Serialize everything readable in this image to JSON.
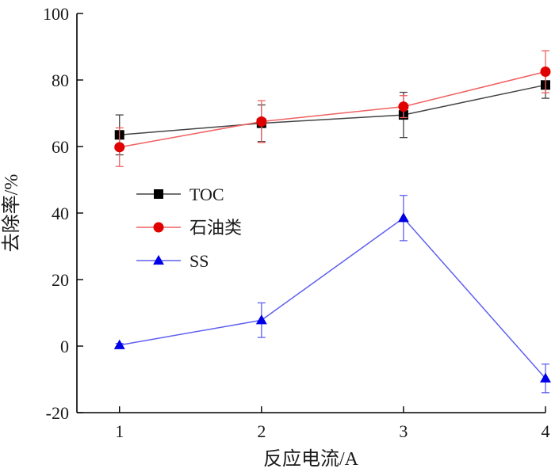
{
  "chart_data": {
    "type": "line",
    "x": [
      1,
      2,
      3,
      4
    ],
    "xlabel": "反应电流/A",
    "ylabel": "去除率/%",
    "xlim": [
      0.7,
      4
    ],
    "ylim": [
      -20,
      100
    ],
    "xticks": [
      1,
      2,
      3,
      4
    ],
    "yticks": [
      -20,
      0,
      20,
      40,
      60,
      80,
      100
    ],
    "grid": false,
    "legend_position": "left-middle",
    "series": [
      {
        "name": "TOC",
        "color": "#000000",
        "marker": "square",
        "values": [
          63.5,
          67.0,
          69.5,
          78.5
        ],
        "errors": [
          6.0,
          5.5,
          6.8,
          4.0
        ]
      },
      {
        "name": "石油类",
        "color": "#e00000",
        "marker": "circle",
        "values": [
          59.8,
          67.5,
          72.0,
          82.5
        ],
        "errors": [
          5.8,
          6.3,
          3.3,
          6.3
        ]
      },
      {
        "name": "SS",
        "color": "#0000e6",
        "marker": "triangle",
        "values": [
          0.3,
          7.8,
          38.5,
          -9.7
        ],
        "errors": [
          0.5,
          5.2,
          6.8,
          4.3
        ]
      }
    ]
  }
}
